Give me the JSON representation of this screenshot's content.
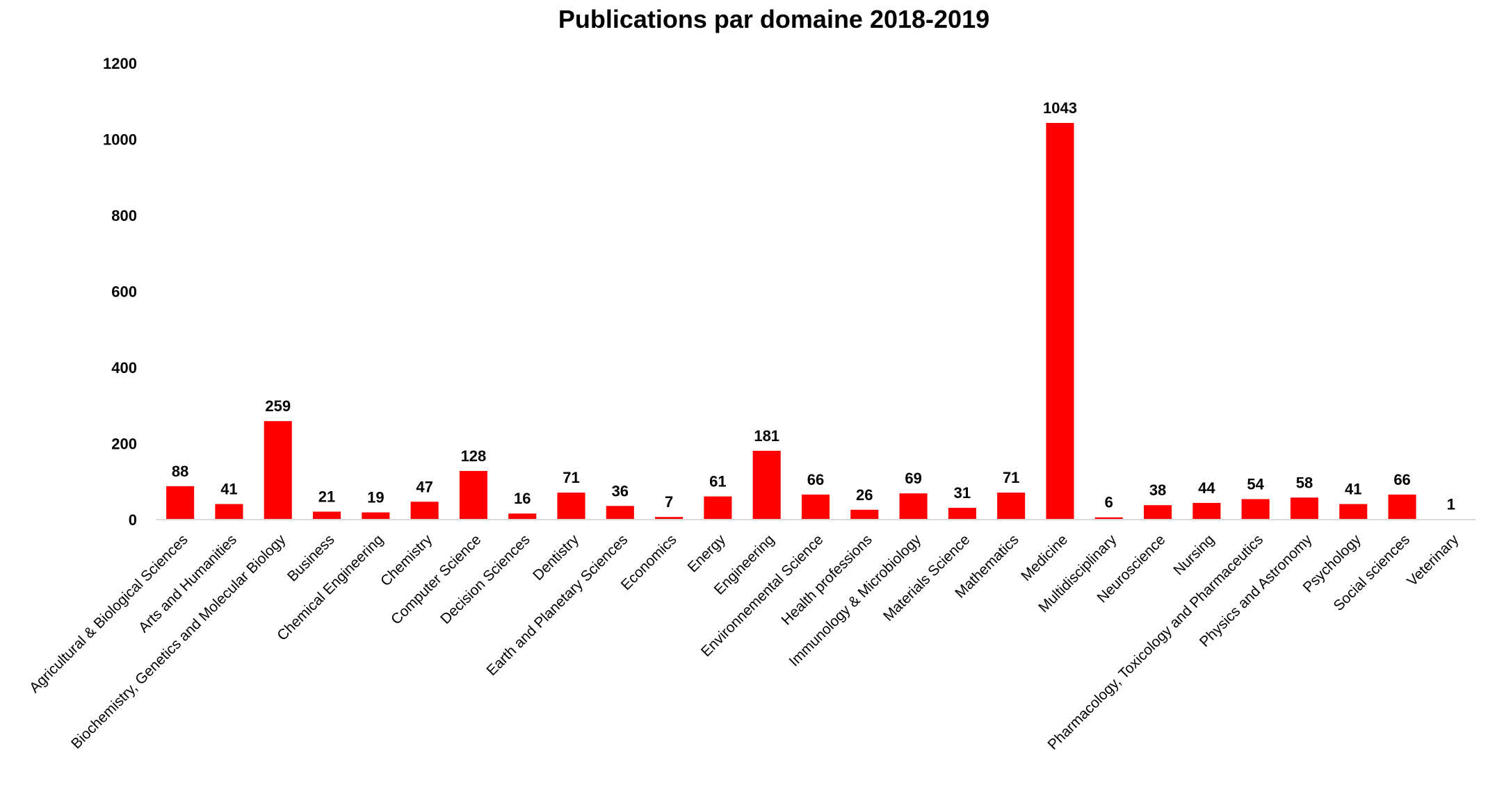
{
  "chart_data": {
    "type": "bar",
    "title": "Publications par domaine 2018-2019",
    "xlabel": "",
    "ylabel": "",
    "ylim": [
      0,
      1200
    ],
    "yticks": [
      0,
      200,
      400,
      600,
      800,
      1000,
      1200
    ],
    "grid": false,
    "legend": "none",
    "bar_color": "#FF0000",
    "axis_color": "#D9D9D9",
    "categories": [
      "Agricultural & Biological Sciences",
      "Arts and Humanities",
      "Biochemistry, Genetics and Molecular Biology",
      "Business",
      "Chemical Engineering",
      "Chemistry",
      "Computer Science",
      "Decision Sciences",
      "Dentistry",
      "Earth and Planetary Sciences",
      "Economics",
      "Energy",
      "Engineering",
      "Environnemental Science",
      "Health professions",
      "Immunology & Microbiology",
      "Materials Science",
      "Mathematics",
      "Medicine",
      "Multidisciplinary",
      "Neuroscience",
      "Nursing",
      "Pharmacology, Toxicology and Pharmaceutics",
      "Physics and Astronomy",
      "Psychology",
      "Social sciences",
      "Veterinary"
    ],
    "values": [
      88,
      41,
      259,
      21,
      19,
      47,
      128,
      16,
      71,
      36,
      7,
      61,
      181,
      66,
      26,
      69,
      31,
      71,
      1043,
      6,
      38,
      44,
      54,
      58,
      41,
      66,
      1
    ],
    "data_labels": [
      "88",
      "41",
      "259",
      "21",
      "19",
      "47",
      "128",
      "16",
      "71",
      "36",
      "7",
      "61",
      "181",
      "66",
      "26",
      "69",
      "31",
      "71",
      "1043",
      "6",
      "38",
      "44",
      "54",
      "58",
      "41",
      "66",
      "1"
    ]
  }
}
